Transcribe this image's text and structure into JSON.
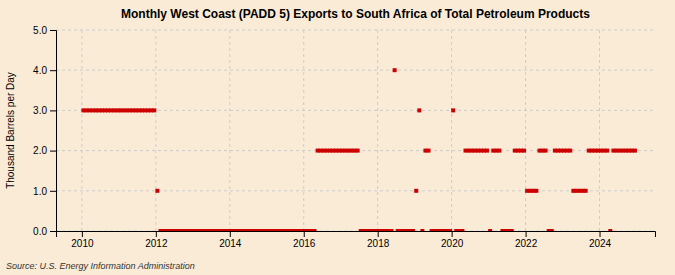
{
  "chart_data": {
    "type": "scatter",
    "title": "Monthly West Coast (PADD 5) Exports to South Africa of Total Petroleum Products",
    "ylabel": "Thousand Barrels per Day",
    "annotations": [
      "Source: U.S. Energy Information Administration"
    ],
    "color": "#cc0000",
    "marker": "square",
    "grid": true,
    "xlim": [
      2009.3,
      2025.5
    ],
    "xticks": [
      2010,
      2012,
      2014,
      2016,
      2018,
      2020,
      2022,
      2024
    ],
    "ylim": [
      0.0,
      5.0
    ],
    "yticks": [
      {
        "value": 0.0,
        "label": "0.0"
      },
      {
        "value": 1.0,
        "label": "1.0"
      },
      {
        "value": 2.0,
        "label": "2.0"
      },
      {
        "value": 3.0,
        "label": "3.0"
      },
      {
        "value": 4.0,
        "label": "4.0"
      },
      {
        "value": 5.0,
        "label": "5.0"
      }
    ],
    "x": [
      2010.0416667,
      2010.125,
      2010.2083333,
      2010.2916667,
      2010.375,
      2010.4583333,
      2010.5416667,
      2010.625,
      2010.7083333,
      2010.7916667,
      2010.875,
      2010.9583333,
      2011.0416667,
      2011.125,
      2011.2083333,
      2011.2916667,
      2011.375,
      2011.4583333,
      2011.5416667,
      2011.625,
      2011.7083333,
      2011.7916667,
      2011.875,
      2011.9583333,
      2012.0416667,
      2012.125,
      2012.2083333,
      2012.2916667,
      2012.375,
      2012.4583333,
      2012.5416667,
      2012.625,
      2012.7083333,
      2012.7916667,
      2012.875,
      2012.9583333,
      2013.0416667,
      2013.125,
      2013.2083333,
      2013.2916667,
      2013.375,
      2013.4583333,
      2013.5416667,
      2013.625,
      2013.7083333,
      2013.7916667,
      2013.875,
      2013.9583333,
      2014.0416667,
      2014.125,
      2014.2083333,
      2014.2916667,
      2014.375,
      2014.4583333,
      2014.5416667,
      2014.625,
      2014.7083333,
      2014.7916667,
      2014.875,
      2014.9583333,
      2015.0416667,
      2015.125,
      2015.2083333,
      2015.2916667,
      2015.375,
      2015.4583333,
      2015.5416667,
      2015.625,
      2015.7083333,
      2015.7916667,
      2015.875,
      2015.9583333,
      2016.0416667,
      2016.125,
      2016.2083333,
      2016.2916667,
      2016.375,
      2016.4583333,
      2016.5416667,
      2016.625,
      2016.7083333,
      2016.7916667,
      2016.875,
      2016.9583333,
      2017.0416667,
      2017.125,
      2017.2083333,
      2017.2916667,
      2017.375,
      2017.4583333,
      2017.5416667,
      2017.625,
      2017.7083333,
      2017.7916667,
      2017.875,
      2017.9583333,
      2018.0416667,
      2018.125,
      2018.2083333,
      2018.2916667,
      2018.375,
      2018.4583333,
      2018.5416667,
      2018.625,
      2018.7083333,
      2018.7916667,
      2018.875,
      2018.9583333,
      2019.0416667,
      2019.125,
      2019.2083333,
      2019.2916667,
      2019.375,
      2019.4583333,
      2019.5416667,
      2019.625,
      2019.7083333,
      2019.7916667,
      2019.875,
      2019.9583333,
      2020.0416667,
      2020.125,
      2020.2083333,
      2020.2916667,
      2020.375,
      2020.4583333,
      2020.5416667,
      2020.625,
      2020.7083333,
      2020.7916667,
      2020.875,
      2020.9583333,
      2021.0416667,
      2021.125,
      2021.2083333,
      2021.2916667,
      2021.375,
      2021.4583333,
      2021.5416667,
      2021.625,
      2021.7083333,
      2021.7916667,
      2021.875,
      2021.9583333,
      2022.0416667,
      2022.125,
      2022.2083333,
      2022.2916667,
      2022.375,
      2022.4583333,
      2022.5416667,
      2022.625,
      2022.7083333,
      2022.7916667,
      2022.875,
      2022.9583333,
      2023.0416667,
      2023.125,
      2023.2083333,
      2023.2916667,
      2023.375,
      2023.4583333,
      2023.5416667,
      2023.625,
      2023.7083333,
      2023.7916667,
      2023.875,
      2023.9583333,
      2024.0416667,
      2024.125,
      2024.2083333,
      2024.2916667,
      2024.375,
      2024.4583333,
      2024.5416667,
      2024.625,
      2024.7083333,
      2024.7916667,
      2024.875,
      2024.9583333
    ],
    "values": [
      3.0,
      3.0,
      3.0,
      3.0,
      3.0,
      3.0,
      3.0,
      3.0,
      3.0,
      3.0,
      3.0,
      3.0,
      3.0,
      3.0,
      3.0,
      3.0,
      3.0,
      3.0,
      3.0,
      3.0,
      3.0,
      3.0,
      3.0,
      3.0,
      1.0,
      0.0,
      0.0,
      0.0,
      0.0,
      0.0,
      0.0,
      0.0,
      0.0,
      0.0,
      0.0,
      0.0,
      0.0,
      0.0,
      0.0,
      0.0,
      0.0,
      0.0,
      0.0,
      0.0,
      0.0,
      0.0,
      0.0,
      0.0,
      0.0,
      0.0,
      0.0,
      0.0,
      0.0,
      0.0,
      0.0,
      0.0,
      0.0,
      0.0,
      0.0,
      0.0,
      0.0,
      0.0,
      0.0,
      0.0,
      0.0,
      0.0,
      0.0,
      0.0,
      0.0,
      0.0,
      0.0,
      0.0,
      0.0,
      0.0,
      0.0,
      0.0,
      2.0,
      2.0,
      2.0,
      2.0,
      2.0,
      2.0,
      2.0,
      2.0,
      2.0,
      2.0,
      2.0,
      2.0,
      2.0,
      2.0,
      0.0,
      0.0,
      0.0,
      0.0,
      0.0,
      0.0,
      0.0,
      0.0,
      0.0,
      0.0,
      0.0,
      4.0,
      0.0,
      0.0,
      0.0,
      0.0,
      0.0,
      0.0,
      1.0,
      3.0,
      0.0,
      2.0,
      2.0,
      0.0,
      0.0,
      0.0,
      0.0,
      0.0,
      0.0,
      0.0,
      3.0,
      0.0,
      0.0,
      0.0,
      2.0,
      2.0,
      2.0,
      2.0,
      2.0,
      2.0,
      2.0,
      2.0,
      0.0,
      2.0,
      2.0,
      2.0,
      0.0,
      0.0,
      0.0,
      0.0,
      2.0,
      2.0,
      2.0,
      2.0,
      1.0,
      1.0,
      1.0,
      1.0,
      2.0,
      2.0,
      2.0,
      0.0,
      0.0,
      2.0,
      2.0,
      2.0,
      2.0,
      2.0,
      2.0,
      1.0,
      1.0,
      1.0,
      1.0,
      1.0,
      2.0,
      2.0,
      2.0,
      2.0,
      2.0,
      2.0,
      2.0,
      0.0,
      2.0,
      2.0,
      2.0,
      2.0,
      2.0,
      2.0,
      2.0,
      2.0
    ]
  }
}
